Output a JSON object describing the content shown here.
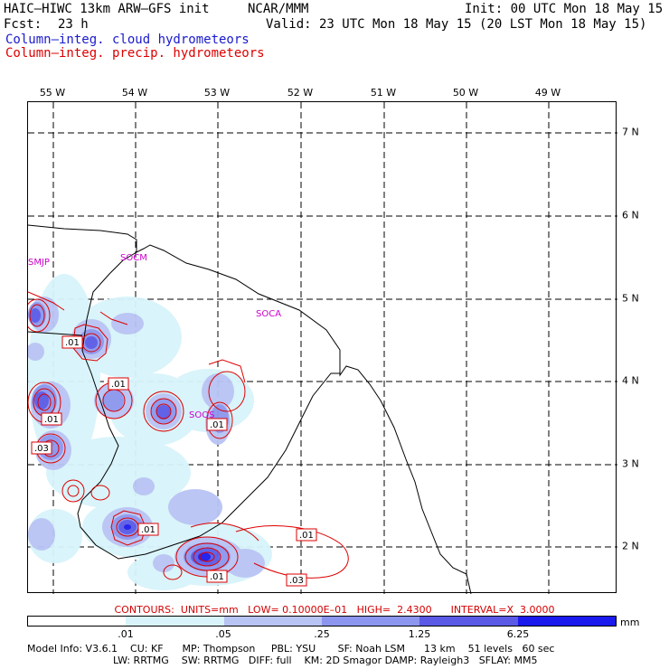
{
  "header": {
    "model": "HAIC–HIWC 13km ARW–GFS init",
    "org": "NCAR/MMM",
    "init": "Init: 00 UTC Mon 18 May 15",
    "fcst_label": "Fcst:",
    "fcst_value": "23 h",
    "valid": "Valid: 23 UTC Mon 18 May 15 (20 LST Mon 18 May 15)",
    "field_cloud": "Column–integ. cloud hydrometeors",
    "field_precip": "Column–integ. precip. hydrometeors",
    "color_cloud": "#1a1acc",
    "color_precip": "#dd0000"
  },
  "axes": {
    "lon_labels": [
      "55 W",
      "54 W",
      "53 W",
      "52 W",
      "51 W",
      "50 W",
      "49 W"
    ],
    "lat_labels": [
      "7 N",
      "6 N",
      "5 N",
      "4 N",
      "3 N",
      "2 N"
    ]
  },
  "stations": [
    "SMJP",
    "SOCM",
    "SOCA",
    "SOOS"
  ],
  "contour_labels": [
    ".01",
    ".01",
    ".01",
    ".01",
    ".03",
    ".01",
    ".01",
    ".01",
    ".03"
  ],
  "contours": {
    "units_text": "CONTOURS:  UNITS=mm   LOW= 0.10000E–01   HIGH=  2.4300      INTERVAL=X  3.0000"
  },
  "colorbar": {
    "colors": [
      "#ffffff",
      "#d8f4fa",
      "#b8c4f4",
      "#8c96ee",
      "#5a5ae6",
      "#1a1aee"
    ],
    "labels": [
      ".01",
      ".05",
      ".25",
      "1.25",
      "6.25"
    ],
    "units": "mm"
  },
  "model_info": {
    "line1": "Model Info: V3.6.1    CU: KF      MP: Thompson     PBL: YSU       SF: Noah LSM      13 km    51 levels   60 sec",
    "line2": "LW: RRTMG    SW: RRTMG   DIFF: full    KM: 2D Smagor DAMP: Rayleigh3   SFLAY: MM5"
  }
}
